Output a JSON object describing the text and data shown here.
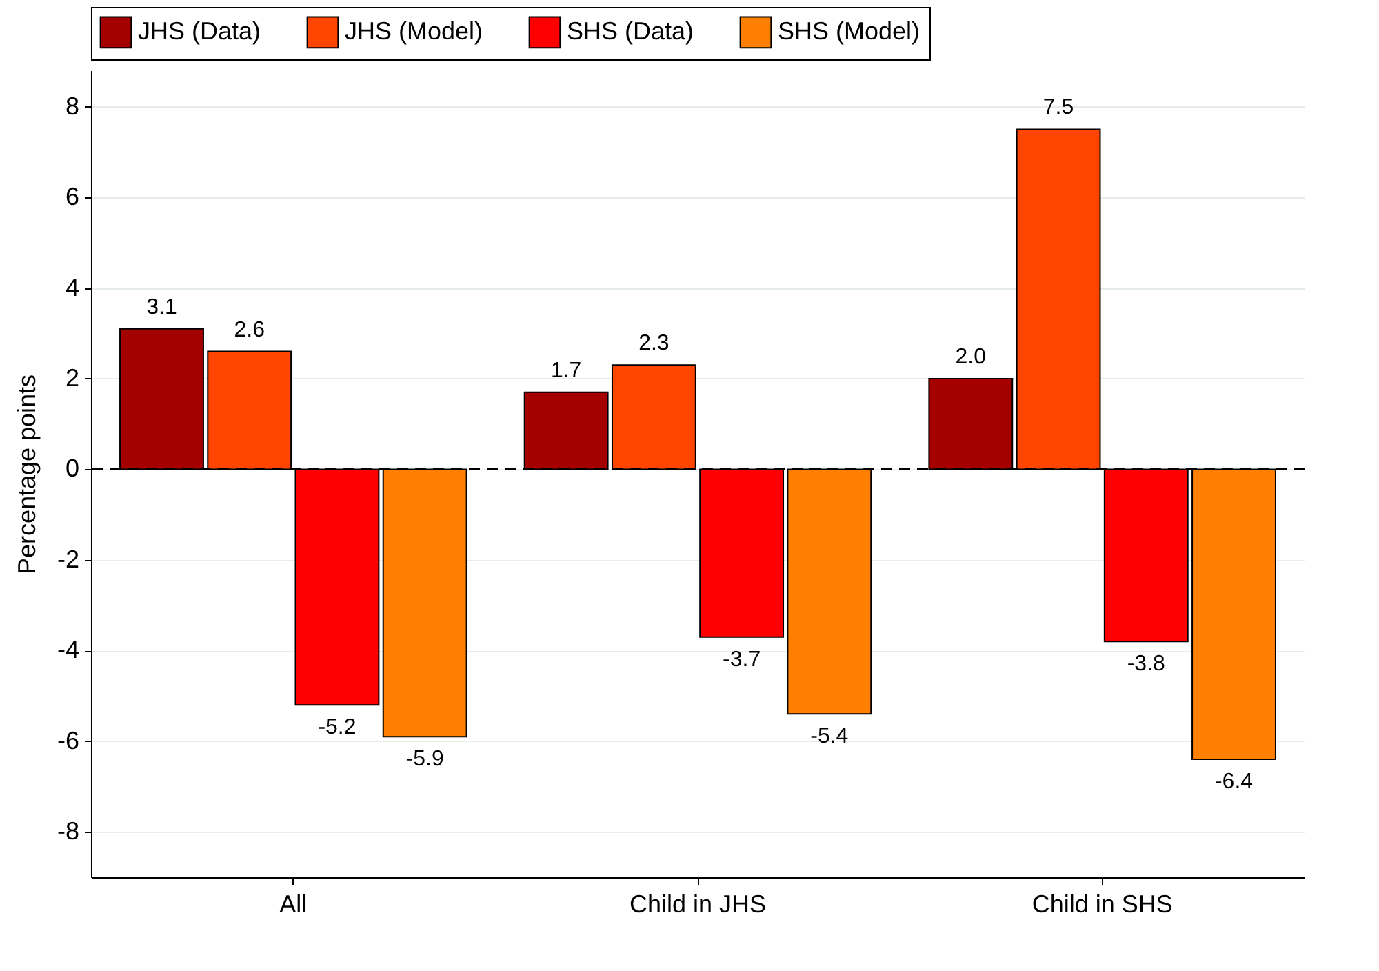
{
  "chart_data": {
    "type": "bar",
    "ylabel": "Percentage points",
    "categories": [
      "All",
      "Child in JHS",
      "Child in SHS"
    ],
    "series": [
      {
        "name": "JHS (Data)",
        "color": "#a50000",
        "values": [
          3.1,
          1.7,
          2.0
        ],
        "value_labels": [
          "3.1",
          "1.7",
          "2.0"
        ]
      },
      {
        "name": "JHS (Model)",
        "color": "#ff4500",
        "values": [
          2.6,
          2.3,
          7.5
        ],
        "value_labels": [
          "2.6",
          "2.3",
          "7.5"
        ]
      },
      {
        "name": "SHS (Data)",
        "color": "#ff0000",
        "values": [
          -5.2,
          -3.7,
          -3.8
        ],
        "value_labels": [
          "-5.2",
          "-3.7",
          "-3.8"
        ]
      },
      {
        "name": "SHS (Model)",
        "color": "#ff8000",
        "values": [
          -5.9,
          -5.4,
          -6.4
        ],
        "value_labels": [
          "-5.9",
          "-5.4",
          "-6.4"
        ]
      }
    ],
    "ylim": [
      -9,
      8.8
    ],
    "yticks": [
      -8,
      -6,
      -4,
      -2,
      0,
      2,
      4,
      6,
      8
    ],
    "grid": "y",
    "legend": "top",
    "ref_lines": [
      {
        "axis": "y",
        "value": 0,
        "color": "#000000",
        "line_style": "dashed"
      }
    ]
  }
}
